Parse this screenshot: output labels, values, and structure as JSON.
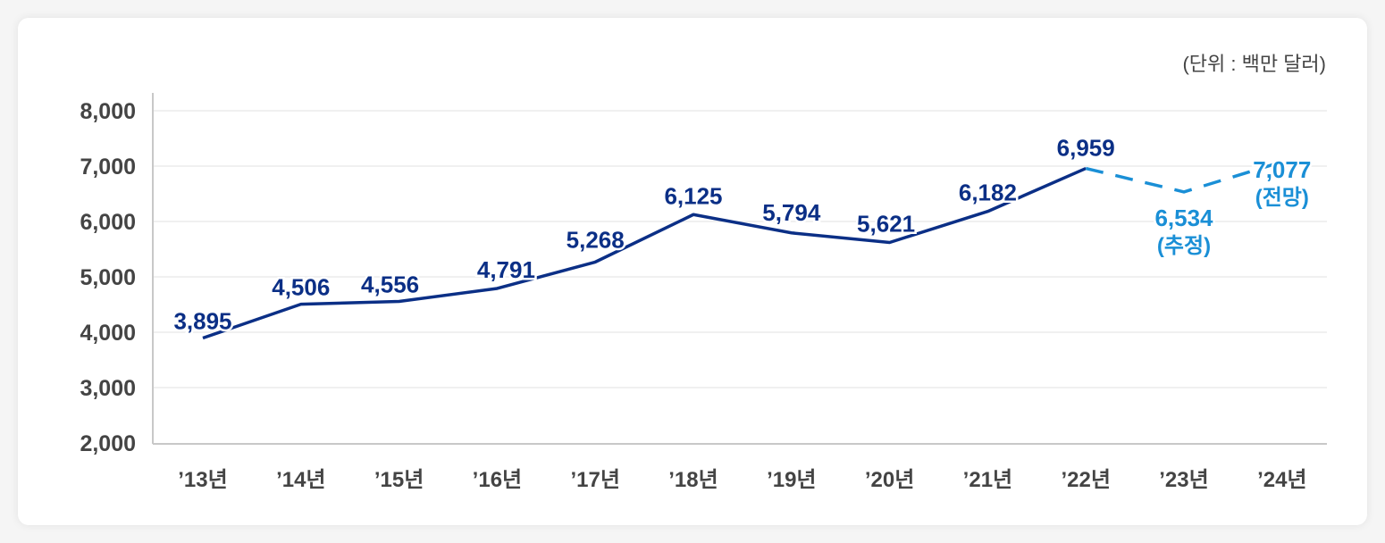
{
  "chart_data": {
    "type": "line",
    "unit_note": "(단위 : 백만 달러)",
    "categories": [
      "’13년",
      "’14년",
      "’15년",
      "’16년",
      "’17년",
      "’18년",
      "’19년",
      "’20년",
      "’21년",
      "’22년",
      "’23년",
      "’24년"
    ],
    "values": [
      3895,
      4506,
      4556,
      4791,
      5268,
      6125,
      5794,
      5621,
      6182,
      6959,
      6534,
      7077
    ],
    "data_labels": [
      "3,895",
      "4,506",
      "4,556",
      "4,791",
      "5,268",
      "6,125",
      "5,794",
      "5,621",
      "6,182",
      "6,959",
      "6,534",
      "7,077"
    ],
    "annotations": {
      "10": "(추정)",
      "11": "(전망)"
    },
    "estimated_from_index": 9,
    "ylim": [
      2000,
      8000
    ],
    "yticks": [
      "2,000",
      "3,000",
      "4,000",
      "5,000",
      "6,000",
      "7,000",
      "8,000"
    ],
    "grid": true,
    "colors": {
      "actual": "#0b2f86",
      "forecast": "#1a8fd6",
      "axis_text": "#444444",
      "grid": "#ececec"
    }
  }
}
